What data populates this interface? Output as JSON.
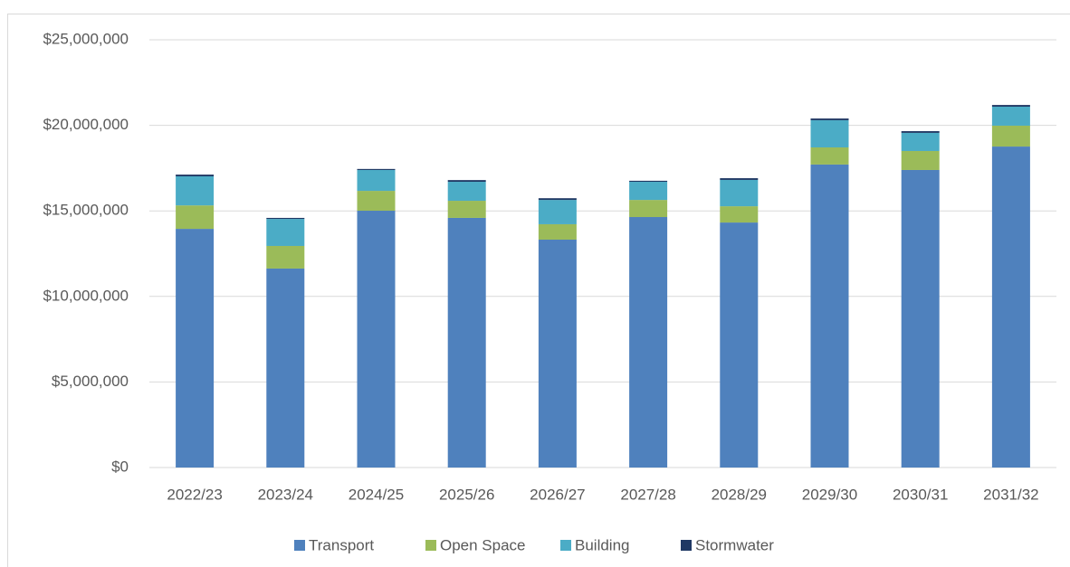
{
  "chart_data": {
    "type": "stacked_bar",
    "categories": [
      "2022/23",
      "2023/24",
      "2024/25",
      "2025/26",
      "2026/27",
      "2027/28",
      "2028/29",
      "2029/30",
      "2030/31",
      "2031/32"
    ],
    "series": [
      {
        "name": "Transport",
        "color": "#4f81bd",
        "values": [
          13950000,
          11630000,
          15010000,
          14590000,
          13320000,
          14640000,
          14320000,
          17710000,
          17390000,
          18760000
        ]
      },
      {
        "name": "Open Space",
        "color": "#9bbb59",
        "values": [
          1370000,
          1320000,
          1160000,
          1000000,
          900000,
          1000000,
          950000,
          1000000,
          1110000,
          1220000
        ]
      },
      {
        "name": "Building",
        "color": "#4bacc6",
        "values": [
          1700000,
          1580000,
          1220000,
          1110000,
          1420000,
          1060000,
          1540000,
          1590000,
          1060000,
          1110000
        ]
      },
      {
        "name": "Stormwater",
        "color": "#1f3864",
        "values": [
          100000,
          60000,
          60000,
          100000,
          100000,
          60000,
          100000,
          100000,
          100000,
          100000
        ]
      }
    ],
    "ylim": [
      0,
      25000000
    ],
    "yticks": [
      {
        "value": 0,
        "label": "$0"
      },
      {
        "value": 5000000,
        "label": "$5,000,000"
      },
      {
        "value": 10000000,
        "label": "$10,000,000"
      },
      {
        "value": 15000000,
        "label": "$15,000,000"
      },
      {
        "value": 20000000,
        "label": "$20,000,000"
      },
      {
        "value": 25000000,
        "label": "$25,000,000"
      }
    ],
    "grid": true,
    "legend": "bottom"
  }
}
